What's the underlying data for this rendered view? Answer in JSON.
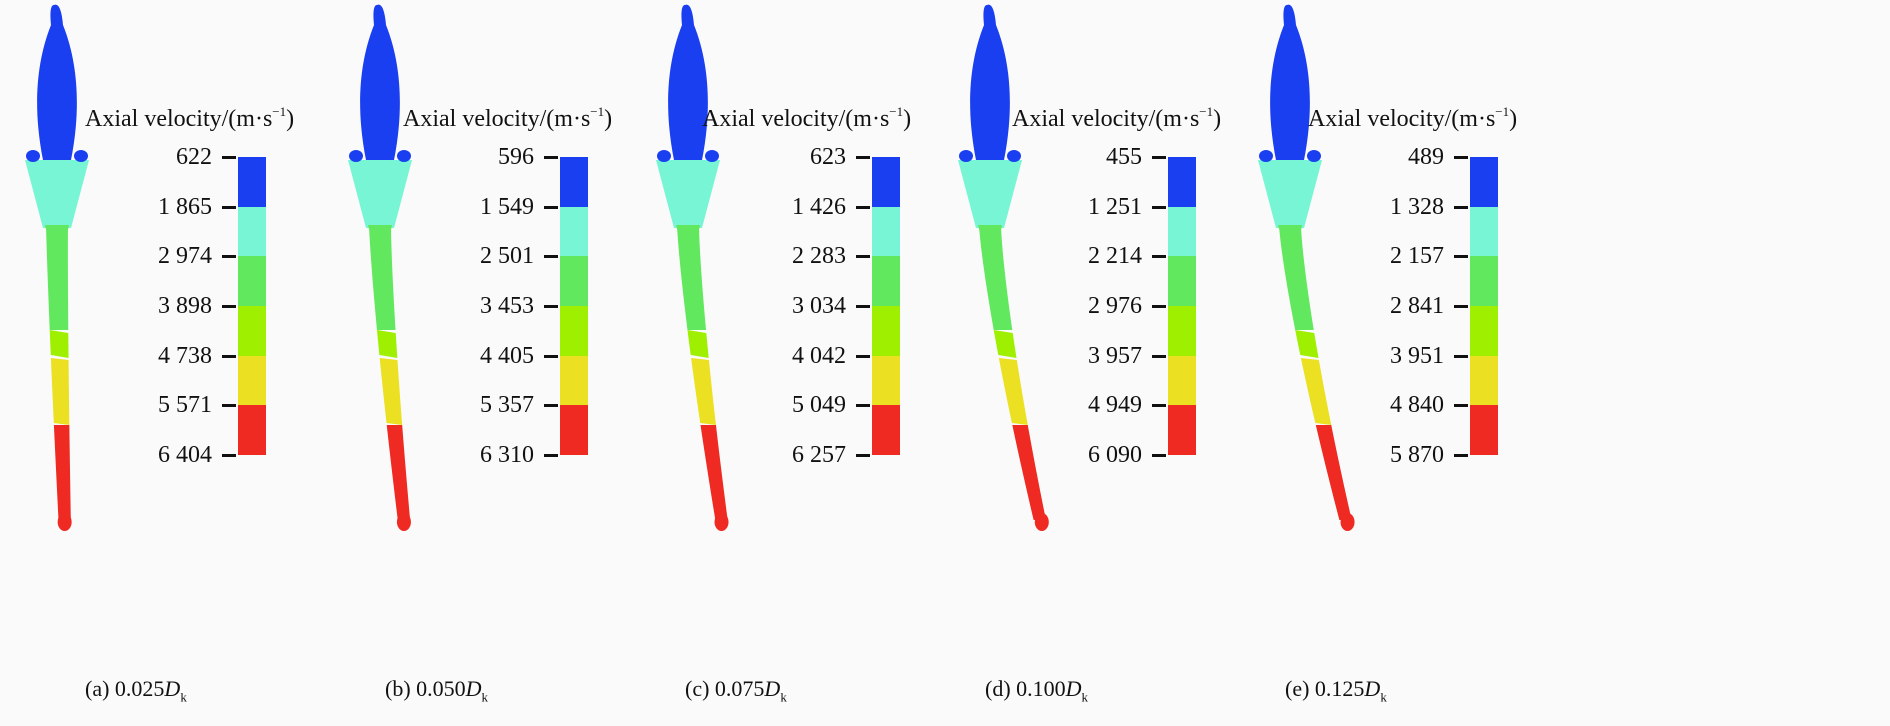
{
  "legend_title": {
    "text": "Axial velocity/(m·s",
    "sup": "−1",
    "close": ")"
  },
  "colors": [
    "#1a3ff0",
    "#78f5d4",
    "#62e85e",
    "#9ef000",
    "#ebe021",
    "#ee2a22"
  ],
  "panels": [
    {
      "caption_prefix": "(a) 0.025",
      "caption_var": "D",
      "caption_sub": "k",
      "ticks": [
        "622",
        "1 865",
        "2 974",
        "3 898",
        "4 738",
        "5 571",
        "6 404"
      ]
    },
    {
      "caption_prefix": "(b) 0.050",
      "caption_var": "D",
      "caption_sub": "k",
      "ticks": [
        "596",
        "1 549",
        "2 501",
        "3 453",
        "4 405",
        "5 357",
        "6 310"
      ]
    },
    {
      "caption_prefix": "(c) 0.075",
      "caption_var": "D",
      "caption_sub": "k",
      "ticks": [
        "623",
        "1 426",
        "2 283",
        "3 034",
        "4 042",
        "5 049",
        "6 257"
      ]
    },
    {
      "caption_prefix": "(d) 0.100",
      "caption_var": "D",
      "caption_sub": "k",
      "ticks": [
        "455",
        "1 251",
        "2 214",
        "2 976",
        "3 957",
        "4 949",
        "6 090"
      ]
    },
    {
      "caption_prefix": "(e) 0.125",
      "caption_var": "D",
      "caption_sub": "k",
      "ticks": [
        "489",
        "1 328",
        "2 157",
        "2 841",
        "3 951",
        "4 840",
        "5 870"
      ]
    }
  ]
}
